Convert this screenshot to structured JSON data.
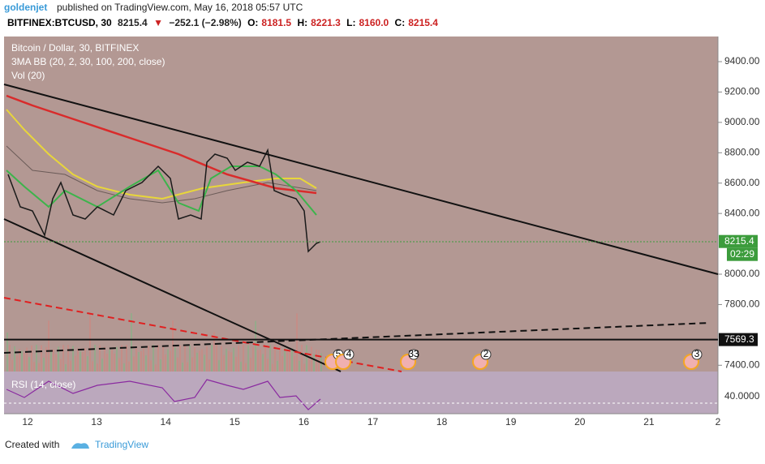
{
  "header": {
    "user": "goldenjet",
    "published": "published on TradingView.com, May 16, 2018 05:57 UTC"
  },
  "quote": {
    "symbol": "BITFINEX:BTCUSD, 30",
    "last": "8215.4",
    "change": "−252.1 (−2.98%)",
    "open_label": "O:",
    "open": "8181.5",
    "high_label": "H:",
    "high": "8221.3",
    "low_label": "L:",
    "low": "8160.0",
    "close_label": "C:",
    "close": "8215.4"
  },
  "legend": [
    "Bitcoin / Dollar, 30, BITFINEX",
    "3MA BB (20, 2, 30, 100, 200, close)",
    "Vol (20)"
  ],
  "price_axis": {
    "ticks": [
      {
        "value": 9400,
        "label": "9400.00"
      },
      {
        "value": 9200,
        "label": "9200.00"
      },
      {
        "value": 9000,
        "label": "9000.00"
      },
      {
        "value": 8800,
        "label": "8800.00"
      },
      {
        "value": 8600,
        "label": "8600.00"
      },
      {
        "value": 8400,
        "label": "8400.00"
      },
      {
        "value": 8000,
        "label": "8000.00"
      },
      {
        "value": 7800,
        "label": "7800.00"
      },
      {
        "value": 7400,
        "label": "7400.00"
      }
    ],
    "tags": [
      {
        "value": 8215.4,
        "label": "8215.4",
        "timer": "02:29"
      },
      {
        "value": 7569.3,
        "label": "7569.3"
      }
    ]
  },
  "rsi": {
    "title": "RSI (14, close)",
    "level": "40.0000"
  },
  "time_axis": [
    "12",
    "13",
    "14",
    "15",
    "16",
    "17",
    "18",
    "19",
    "20",
    "21",
    "2"
  ],
  "events": [
    "5",
    "4",
    "33",
    "2",
    "3"
  ],
  "footer": {
    "created": "Created with",
    "brand": "TradingView"
  }
}
